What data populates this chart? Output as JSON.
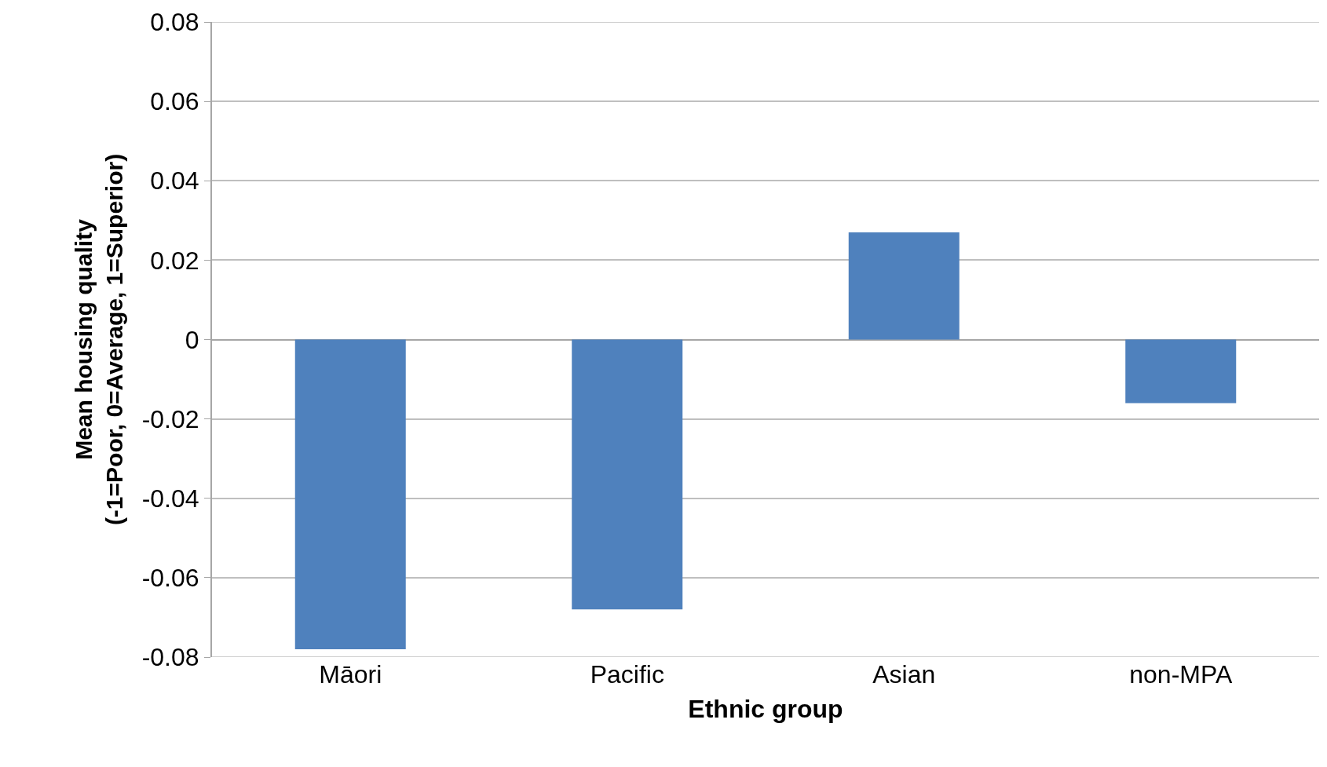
{
  "chart_data": {
    "type": "bar",
    "xlabel": "Ethnic group",
    "ylabel": "Mean housing quality\n(-1=Poor, 0=Average, 1=Superior)",
    "categories": [
      "Māori",
      "Pacific",
      "Asian",
      "non-MPA"
    ],
    "values": [
      -0.078,
      -0.068,
      0.027,
      -0.016
    ],
    "color": "#4f81bd",
    "ylim": [
      -0.08,
      0.08
    ],
    "yticks": [
      {
        "value": -0.08,
        "label": "-0.08"
      },
      {
        "value": -0.06,
        "label": "-0.06"
      },
      {
        "value": -0.04,
        "label": "-0.04"
      },
      {
        "value": -0.02,
        "label": "-0.02"
      },
      0,
      {
        "value": 0.02,
        "label": "0.02"
      },
      {
        "value": 0.04,
        "label": "0.04"
      },
      {
        "value": 0.06,
        "label": "0.06"
      },
      {
        "value": 0.08,
        "label": "0.08"
      }
    ],
    "grid": "y"
  }
}
